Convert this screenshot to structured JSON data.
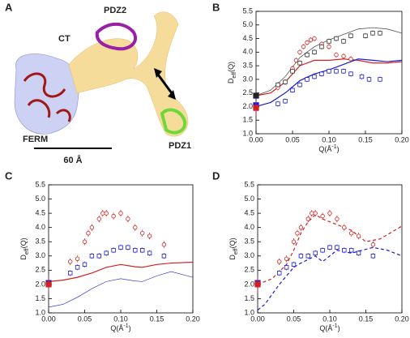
{
  "panel_a": {
    "label": "A",
    "pdz2": "PDZ2",
    "ct": "CT",
    "ferm": "FERM",
    "pdz1": "PDZ1",
    "scale": "60 Å"
  },
  "chart_data": [
    {
      "type": "scatter",
      "label": "B",
      "x_label": {
        "base": "Q(Å",
        "sup": "-1",
        "end": ")"
      },
      "y_label": {
        "base": "D",
        "sub": "eff",
        "end": "(Q)"
      },
      "xlim": [
        0,
        0.2
      ],
      "ylim": [
        1.0,
        5.5
      ],
      "xticks": [
        {
          "value": 0,
          "label": "0.00"
        },
        0.05,
        {
          "value": 0.1,
          "label": "0.10"
        },
        0.15,
        {
          "value": 0.2,
          "label": "0.20"
        }
      ],
      "yticks": [
        {
          "value": 1,
          "label": "1.0"
        },
        1.5,
        {
          "value": 2,
          "label": "2.0"
        },
        2.5,
        {
          "value": 3,
          "label": "3.0"
        },
        3.5,
        {
          "value": 4,
          "label": "4.0"
        },
        4.5,
        {
          "value": 5,
          "label": "5.0"
        },
        5.5
      ],
      "series": [
        {
          "color": "#555555",
          "line": "solid",
          "width": 0.8,
          "x": [
            0,
            0.02,
            0.04,
            0.06,
            0.08,
            0.1,
            0.12,
            0.14,
            0.16,
            0.18,
            0.2
          ],
          "values": [
            2.4,
            2.6,
            3.1,
            3.8,
            4.2,
            4.45,
            4.65,
            4.85,
            4.9,
            4.85,
            4.7
          ]
        },
        {
          "color": "#d62020",
          "line": "solid",
          "width": 1.2,
          "x": [
            0,
            0.02,
            0.04,
            0.06,
            0.08,
            0.1,
            0.12,
            0.14,
            0.16,
            0.18,
            0.2
          ],
          "values": [
            2.4,
            2.5,
            2.9,
            3.5,
            3.7,
            3.7,
            3.75,
            3.7,
            3.6,
            3.6,
            3.65
          ]
        },
        {
          "color": "#1a1ad6",
          "line": "solid",
          "width": 1.2,
          "x": [
            0,
            0.02,
            0.04,
            0.06,
            0.08,
            0.1,
            0.12,
            0.14,
            0.16,
            0.18,
            0.2
          ],
          "values": [
            2.0,
            2.15,
            2.5,
            2.95,
            3.2,
            3.35,
            3.55,
            3.75,
            3.7,
            3.65,
            3.7
          ]
        },
        {
          "color": "#d62020",
          "marker": "circle",
          "error": 0.1,
          "x": [
            0.03,
            0.04,
            0.05,
            0.055,
            0.06,
            0.065,
            0.07,
            0.075,
            0.08,
            0.09,
            0.1,
            0.11,
            0.12,
            0.13
          ],
          "values": [
            2.7,
            2.9,
            3.4,
            3.7,
            4.0,
            4.2,
            4.35,
            4.45,
            4.5,
            4.3,
            4.2,
            3.9,
            3.85,
            3.75
          ]
        },
        {
          "color": "#333333",
          "marker": "square",
          "error": 0.1,
          "x": [
            0.03,
            0.04,
            0.05,
            0.06,
            0.07,
            0.08,
            0.09,
            0.1,
            0.11,
            0.12,
            0.13,
            0.15,
            0.16,
            0.17
          ],
          "values": [
            2.8,
            2.9,
            3.3,
            3.6,
            3.9,
            4.0,
            4.2,
            4.4,
            4.5,
            4.4,
            4.6,
            4.6,
            4.7,
            4.7
          ]
        },
        {
          "color": "#1a1ad6",
          "marker": "square",
          "error": 0.1,
          "x": [
            0.03,
            0.04,
            0.05,
            0.06,
            0.07,
            0.08,
            0.09,
            0.1,
            0.11,
            0.12,
            0.13,
            0.145,
            0.155,
            0.17
          ],
          "values": [
            2.1,
            2.2,
            2.6,
            2.8,
            3.0,
            3.1,
            3.2,
            3.3,
            3.3,
            3.3,
            3.2,
            3.1,
            3.0,
            3.0
          ]
        },
        {
          "color": "#222222",
          "marker": "square",
          "filled": true,
          "error": 0.25,
          "x": [
            0
          ],
          "values": [
            2.4
          ]
        },
        {
          "color": "#1a1ad6",
          "marker": "square",
          "filled": true,
          "error": 0.25,
          "x": [
            0
          ],
          "values": [
            2.05
          ]
        },
        {
          "color": "#d62020",
          "marker": "square",
          "filled": true,
          "error": 0.25,
          "x": [
            0
          ],
          "values": [
            1.95
          ]
        }
      ]
    },
    {
      "type": "scatter",
      "label": "C",
      "x_label": {
        "base": "Q(Å",
        "sup": "-1",
        "end": ")"
      },
      "y_label": {
        "base": "D",
        "sub": "eff",
        "end": "(Q)"
      },
      "xlim": [
        0,
        0.2
      ],
      "ylim": [
        1.0,
        5.5
      ],
      "xticks": [
        {
          "value": 0,
          "label": "0.00"
        },
        0.05,
        {
          "value": 0.1,
          "label": "0.10"
        },
        0.15,
        {
          "value": 0.2,
          "label": "0.20"
        }
      ],
      "yticks": [
        {
          "value": 1,
          "label": "1.0"
        },
        1.5,
        {
          "value": 2,
          "label": "2.0"
        },
        2.5,
        {
          "value": 3,
          "label": "3.0"
        },
        3.5,
        {
          "value": 4,
          "label": "4.0"
        },
        4.5,
        {
          "value": 5,
          "label": "5.0"
        },
        5.5
      ],
      "series": [
        {
          "color": "#d62020",
          "line": "solid",
          "width": 1.2,
          "x": [
            0,
            0.02,
            0.04,
            0.06,
            0.08,
            0.1,
            0.12,
            0.13,
            0.15,
            0.17,
            0.2
          ],
          "values": [
            2.1,
            2.15,
            2.25,
            2.4,
            2.6,
            2.7,
            2.62,
            2.6,
            2.7,
            2.75,
            2.78
          ]
        },
        {
          "color": "#1a1ad6",
          "line": "solid",
          "width": 0.6,
          "x": [
            0,
            0.02,
            0.04,
            0.06,
            0.08,
            0.1,
            0.12,
            0.13,
            0.15,
            0.17,
            0.2
          ],
          "values": [
            1.2,
            1.3,
            1.55,
            1.85,
            2.1,
            2.2,
            2.12,
            2.1,
            2.3,
            2.45,
            2.25
          ]
        },
        {
          "color": "#d62020",
          "marker": "circle",
          "error": 0.12,
          "x": [
            0.03,
            0.04,
            0.05,
            0.055,
            0.06,
            0.07,
            0.075,
            0.08,
            0.09,
            0.1,
            0.11,
            0.12,
            0.13,
            0.14,
            0.16
          ],
          "values": [
            2.8,
            2.9,
            3.5,
            3.8,
            4.0,
            4.3,
            4.5,
            4.5,
            4.4,
            4.5,
            4.3,
            4.0,
            3.8,
            3.7,
            3.4
          ]
        },
        {
          "color": "#1a1ad6",
          "marker": "square",
          "error": 0.1,
          "x": [
            0.03,
            0.04,
            0.05,
            0.06,
            0.07,
            0.08,
            0.09,
            0.1,
            0.11,
            0.12,
            0.13,
            0.14,
            0.16
          ],
          "values": [
            2.4,
            2.6,
            2.7,
            3.0,
            3.0,
            3.1,
            3.2,
            3.3,
            3.3,
            3.2,
            3.2,
            3.1,
            3.0
          ]
        },
        {
          "color": "#1a1ad6",
          "marker": "square",
          "filled": true,
          "error": 0.3,
          "x": [
            0
          ],
          "values": [
            2.05
          ]
        },
        {
          "color": "#d62020",
          "marker": "square",
          "filled": true,
          "error": 0.3,
          "x": [
            0
          ],
          "values": [
            2.0
          ]
        }
      ]
    },
    {
      "type": "scatter",
      "label": "D",
      "x_label": {
        "base": "Q(Å",
        "sup": "-1",
        "end": ")"
      },
      "y_label": {
        "base": "D",
        "sub": "eff",
        "end": "(Q)"
      },
      "xlim": [
        0,
        0.2
      ],
      "ylim": [
        1.0,
        5.5
      ],
      "xticks": [
        {
          "value": 0,
          "label": "0.00"
        },
        0.05,
        {
          "value": 0.1,
          "label": "0.10"
        },
        0.15,
        {
          "value": 0.2,
          "label": "0.20"
        }
      ],
      "yticks": [
        {
          "value": 1,
          "label": "1.0"
        },
        1.5,
        {
          "value": 2,
          "label": "2.0"
        },
        2.5,
        {
          "value": 3,
          "label": "3.0"
        },
        3.5,
        {
          "value": 4,
          "label": "4.0"
        },
        4.5,
        {
          "value": 5,
          "label": "5.0"
        },
        5.5
      ],
      "series": [
        {
          "color": "#d62020",
          "line": "dashed",
          "width": 1.2,
          "x": [
            0,
            0.02,
            0.04,
            0.05,
            0.06,
            0.07,
            0.08,
            0.09,
            0.1,
            0.12,
            0.13,
            0.15,
            0.17,
            0.2
          ],
          "values": [
            2.0,
            2.2,
            2.7,
            3.2,
            3.8,
            4.2,
            4.45,
            4.3,
            4.2,
            4.0,
            3.9,
            3.5,
            3.6,
            4.05
          ]
        },
        {
          "color": "#1a1ad6",
          "line": "dashed",
          "width": 1.2,
          "x": [
            0,
            0.01,
            0.03,
            0.05,
            0.06,
            0.08,
            0.09,
            0.11,
            0.13,
            0.16,
            0.18,
            0.2
          ],
          "values": [
            1.1,
            1.3,
            2.0,
            2.6,
            2.75,
            3.0,
            2.8,
            3.2,
            3.1,
            3.3,
            3.2,
            3.0
          ]
        },
        {
          "color": "#d62020",
          "marker": "circle",
          "error": 0.12,
          "x": [
            0.03,
            0.04,
            0.05,
            0.055,
            0.06,
            0.07,
            0.075,
            0.08,
            0.09,
            0.1,
            0.11,
            0.12,
            0.13,
            0.14,
            0.16
          ],
          "values": [
            2.8,
            2.9,
            3.5,
            3.8,
            4.0,
            4.3,
            4.5,
            4.5,
            4.4,
            4.5,
            4.3,
            4.0,
            3.8,
            3.7,
            3.4
          ]
        },
        {
          "color": "#1a1ad6",
          "marker": "square",
          "error": 0.1,
          "x": [
            0.03,
            0.04,
            0.05,
            0.06,
            0.07,
            0.08,
            0.09,
            0.1,
            0.11,
            0.12,
            0.13,
            0.14,
            0.16
          ],
          "values": [
            2.4,
            2.6,
            2.7,
            3.0,
            3.0,
            3.1,
            3.2,
            3.3,
            3.3,
            3.2,
            3.2,
            3.1,
            3.0
          ]
        },
        {
          "color": "#1a1ad6",
          "marker": "square",
          "filled": true,
          "error": 0.3,
          "x": [
            0
          ],
          "values": [
            2.05
          ]
        },
        {
          "color": "#d62020",
          "marker": "square",
          "filled": true,
          "error": 0.3,
          "x": [
            0
          ],
          "values": [
            2.0
          ]
        }
      ]
    }
  ]
}
